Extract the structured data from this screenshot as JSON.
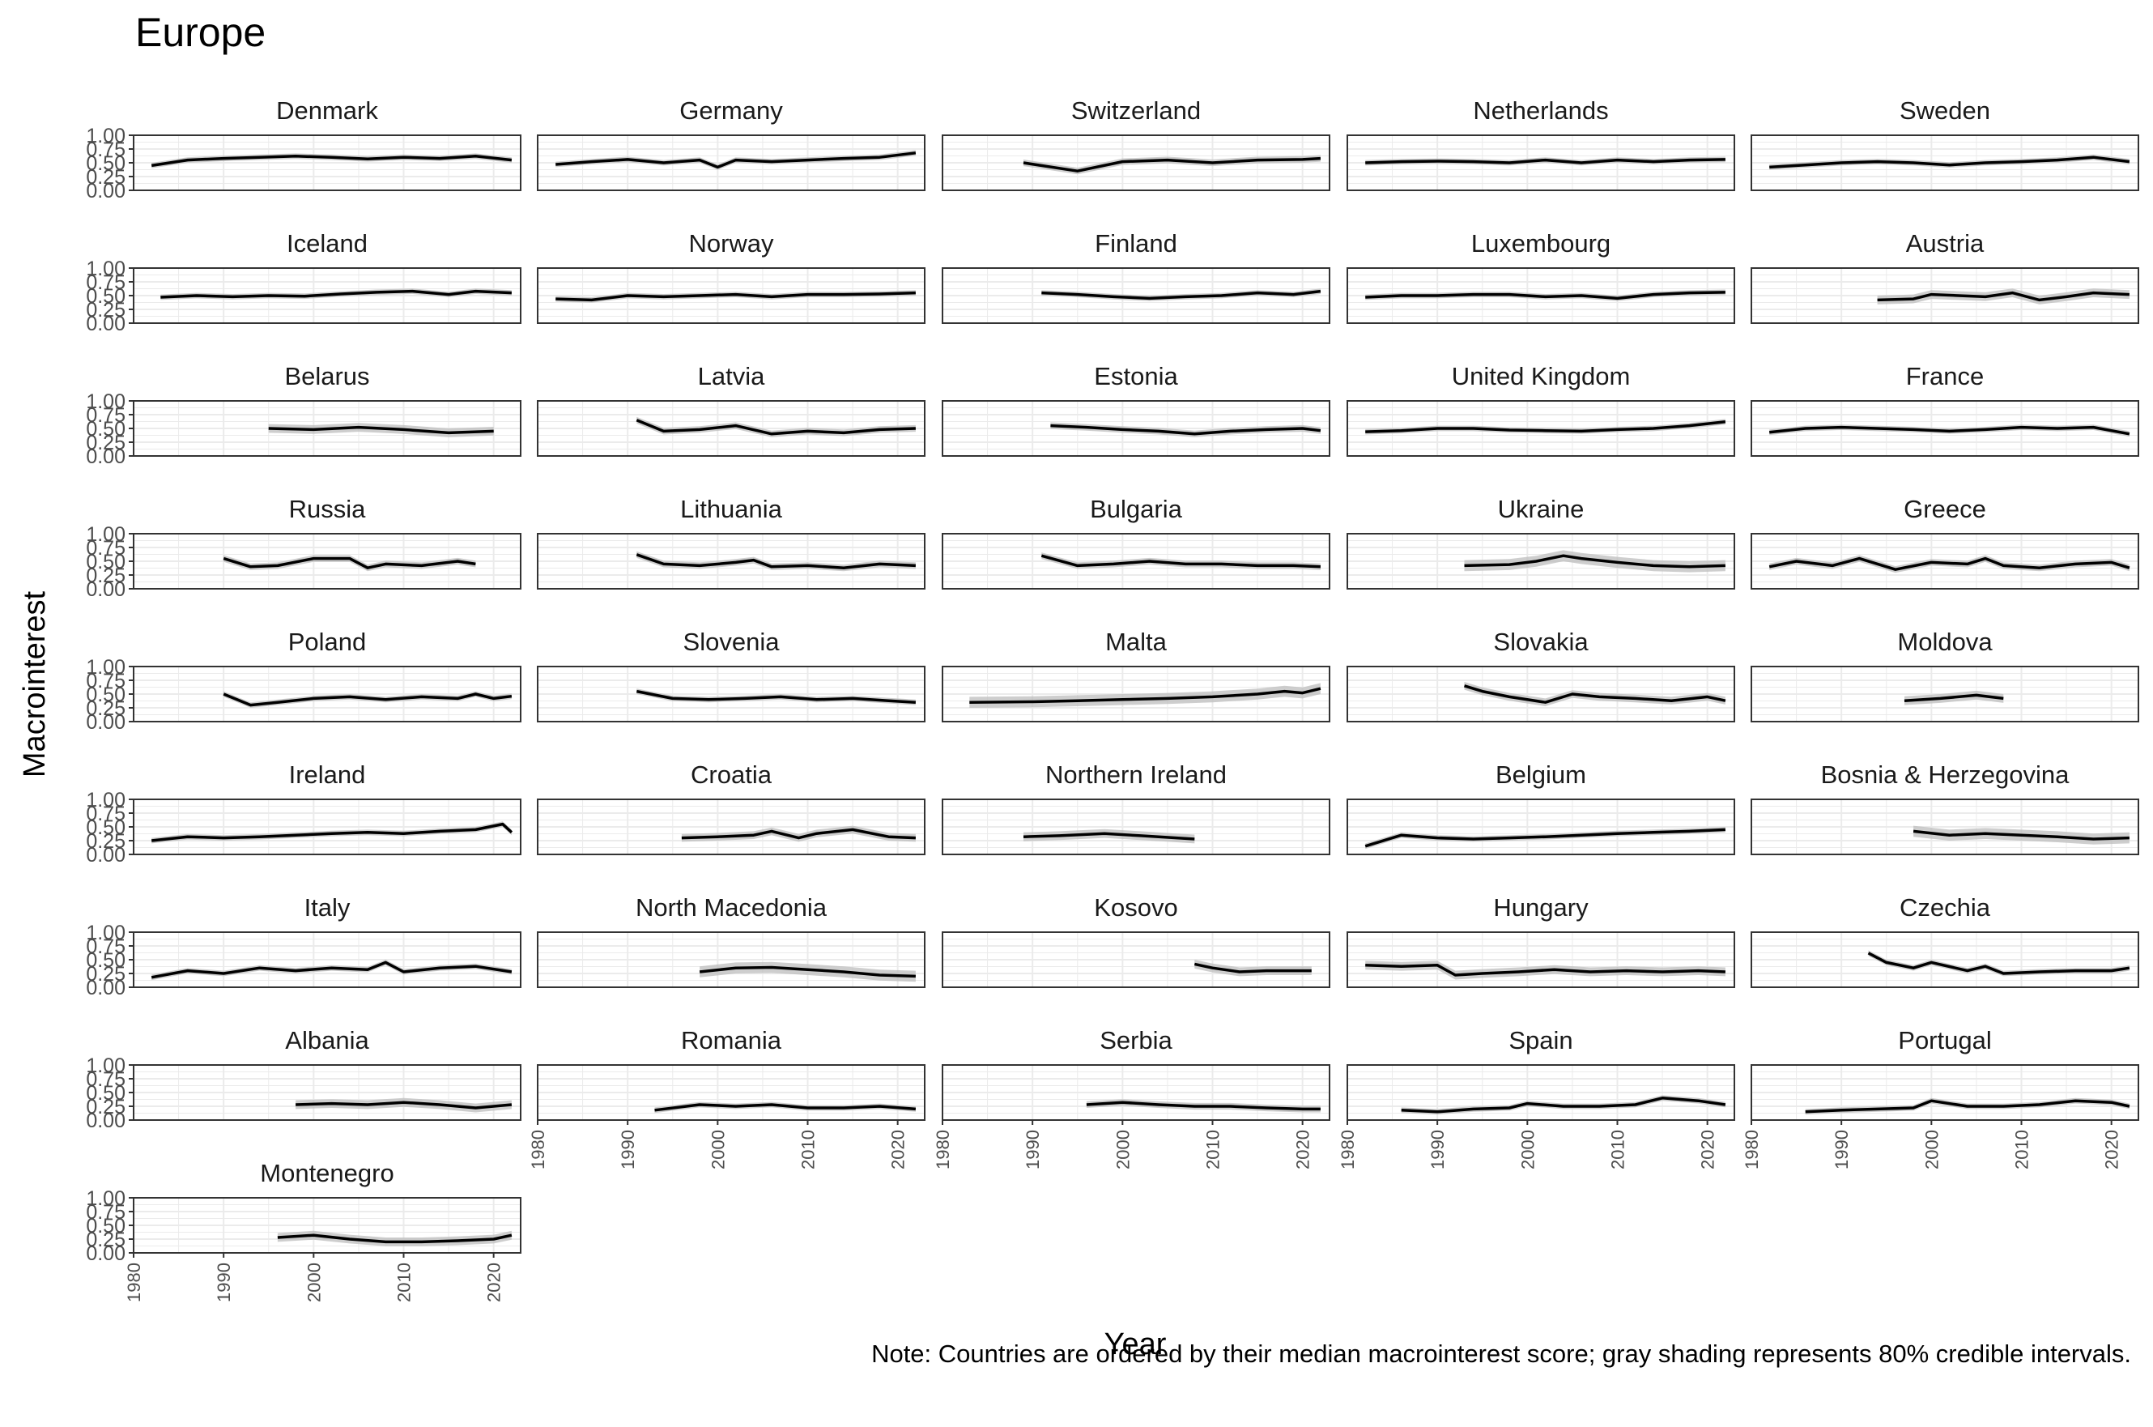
{
  "chart_data": {
    "type": "line",
    "title": "Europe",
    "xlabel": "Year",
    "ylabel": "Macrointerest",
    "caption": "Note: Countries are ordered by their median macrointerest score; gray shading represents 80% credible intervals.",
    "xlim": [
      1980,
      2023
    ],
    "ylim": [
      0,
      1
    ],
    "x_ticks": [
      "1980",
      "1990",
      "2000",
      "2010",
      "2020"
    ],
    "y_ticks": [
      "0.00",
      "0.25",
      "0.50",
      "0.75",
      "1.00"
    ],
    "facet_layout": {
      "columns": 5,
      "rows": 9
    },
    "grid": true,
    "colors": {
      "line": "#000000",
      "ribbon": "#bdbdbd",
      "grid": "#ebebeb",
      "panel_border": "#333333",
      "text": "#000000",
      "tick_text": "#4d4d4d"
    },
    "series": [
      {
        "name": "Denmark",
        "x": [
          1982,
          1986,
          1990,
          1994,
          1998,
          2002,
          2006,
          2010,
          2014,
          2018,
          2022
        ],
        "y": [
          0.45,
          0.55,
          0.58,
          0.6,
          0.62,
          0.6,
          0.57,
          0.6,
          0.58,
          0.62,
          0.55
        ],
        "ci": 0.05
      },
      {
        "name": "Germany",
        "x": [
          1982,
          1986,
          1990,
          1994,
          1998,
          2000,
          2002,
          2006,
          2010,
          2014,
          2018,
          2022
        ],
        "y": [
          0.47,
          0.52,
          0.56,
          0.5,
          0.55,
          0.42,
          0.55,
          0.52,
          0.55,
          0.58,
          0.6,
          0.68
        ],
        "ci": 0.05
      },
      {
        "name": "Switzerland",
        "x": [
          1989,
          1995,
          2000,
          2005,
          2010,
          2015,
          2020,
          2022
        ],
        "y": [
          0.5,
          0.35,
          0.52,
          0.55,
          0.5,
          0.55,
          0.56,
          0.58
        ],
        "ci": 0.06
      },
      {
        "name": "Netherlands",
        "x": [
          1982,
          1986,
          1990,
          1994,
          1998,
          2002,
          2006,
          2010,
          2014,
          2018,
          2022
        ],
        "y": [
          0.5,
          0.52,
          0.53,
          0.52,
          0.5,
          0.55,
          0.5,
          0.55,
          0.52,
          0.55,
          0.56
        ],
        "ci": 0.05
      },
      {
        "name": "Sweden",
        "x": [
          1982,
          1986,
          1990,
          1994,
          1998,
          2002,
          2006,
          2010,
          2014,
          2018,
          2022
        ],
        "y": [
          0.42,
          0.46,
          0.5,
          0.52,
          0.5,
          0.46,
          0.5,
          0.52,
          0.55,
          0.6,
          0.52
        ],
        "ci": 0.05
      },
      {
        "name": "Iceland",
        "x": [
          1983,
          1987,
          1991,
          1995,
          1999,
          2003,
          2007,
          2011,
          2015,
          2018,
          2022
        ],
        "y": [
          0.47,
          0.5,
          0.48,
          0.5,
          0.49,
          0.53,
          0.56,
          0.58,
          0.52,
          0.58,
          0.55
        ],
        "ci": 0.05
      },
      {
        "name": "Norway",
        "x": [
          1982,
          1986,
          1990,
          1994,
          1998,
          2002,
          2006,
          2010,
          2014,
          2018,
          2022
        ],
        "y": [
          0.44,
          0.42,
          0.5,
          0.48,
          0.5,
          0.52,
          0.48,
          0.52,
          0.52,
          0.53,
          0.55
        ],
        "ci": 0.05
      },
      {
        "name": "Finland",
        "x": [
          1991,
          1995,
          1999,
          2003,
          2007,
          2011,
          2015,
          2019,
          2022
        ],
        "y": [
          0.55,
          0.52,
          0.48,
          0.45,
          0.48,
          0.5,
          0.55,
          0.52,
          0.58
        ],
        "ci": 0.05
      },
      {
        "name": "Luxembourg",
        "x": [
          1982,
          1986,
          1990,
          1994,
          1998,
          2002,
          2006,
          2010,
          2014,
          2018,
          2022
        ],
        "y": [
          0.47,
          0.5,
          0.5,
          0.52,
          0.52,
          0.48,
          0.5,
          0.45,
          0.52,
          0.55,
          0.56
        ],
        "ci": 0.05
      },
      {
        "name": "Austria",
        "x": [
          1994,
          1998,
          2000,
          2003,
          2006,
          2009,
          2012,
          2015,
          2018,
          2022
        ],
        "y": [
          0.42,
          0.44,
          0.52,
          0.5,
          0.48,
          0.55,
          0.42,
          0.48,
          0.55,
          0.52
        ],
        "ci": 0.08
      },
      {
        "name": "Belarus",
        "x": [
          1995,
          2000,
          2005,
          2010,
          2015,
          2020
        ],
        "y": [
          0.5,
          0.48,
          0.52,
          0.48,
          0.42,
          0.45
        ],
        "ci": 0.08
      },
      {
        "name": "Latvia",
        "x": [
          1991,
          1994,
          1998,
          2002,
          2006,
          2010,
          2014,
          2018,
          2022
        ],
        "y": [
          0.65,
          0.45,
          0.48,
          0.55,
          0.4,
          0.45,
          0.42,
          0.48,
          0.5
        ],
        "ci": 0.06
      },
      {
        "name": "Estonia",
        "x": [
          1992,
          1996,
          2000,
          2004,
          2008,
          2012,
          2016,
          2020,
          2022
        ],
        "y": [
          0.55,
          0.52,
          0.48,
          0.45,
          0.4,
          0.45,
          0.48,
          0.5,
          0.46
        ],
        "ci": 0.06
      },
      {
        "name": "United Kingdom",
        "x": [
          1982,
          1986,
          1990,
          1994,
          1998,
          2002,
          2006,
          2010,
          2014,
          2018,
          2022
        ],
        "y": [
          0.44,
          0.46,
          0.5,
          0.5,
          0.47,
          0.46,
          0.45,
          0.48,
          0.5,
          0.55,
          0.62
        ],
        "ci": 0.05
      },
      {
        "name": "France",
        "x": [
          1982,
          1986,
          1990,
          1994,
          1998,
          2002,
          2006,
          2010,
          2014,
          2018,
          2022
        ],
        "y": [
          0.43,
          0.5,
          0.52,
          0.5,
          0.48,
          0.45,
          0.48,
          0.52,
          0.5,
          0.52,
          0.4
        ],
        "ci": 0.05
      },
      {
        "name": "Russia",
        "x": [
          1990,
          1993,
          1996,
          2000,
          2004,
          2006,
          2008,
          2012,
          2016,
          2018
        ],
        "y": [
          0.55,
          0.4,
          0.42,
          0.55,
          0.55,
          0.38,
          0.45,
          0.42,
          0.5,
          0.45
        ],
        "ci": 0.06
      },
      {
        "name": "Lithuania",
        "x": [
          1991,
          1994,
          1998,
          2002,
          2004,
          2006,
          2010,
          2014,
          2018,
          2022
        ],
        "y": [
          0.62,
          0.45,
          0.42,
          0.48,
          0.52,
          0.4,
          0.42,
          0.38,
          0.45,
          0.42
        ],
        "ci": 0.06
      },
      {
        "name": "Bulgaria",
        "x": [
          1991,
          1995,
          1999,
          2003,
          2007,
          2011,
          2015,
          2019,
          2022
        ],
        "y": [
          0.6,
          0.42,
          0.45,
          0.5,
          0.45,
          0.45,
          0.42,
          0.42,
          0.4
        ],
        "ci": 0.06
      },
      {
        "name": "Ukraine",
        "x": [
          1993,
          1998,
          2001,
          2004,
          2006,
          2010,
          2014,
          2018,
          2022
        ],
        "y": [
          0.42,
          0.44,
          0.5,
          0.6,
          0.55,
          0.48,
          0.42,
          0.4,
          0.42
        ],
        "ci": 0.1
      },
      {
        "name": "Greece",
        "x": [
          1982,
          1985,
          1989,
          1992,
          1996,
          2000,
          2004,
          2006,
          2008,
          2012,
          2016,
          2020,
          2022
        ],
        "y": [
          0.4,
          0.5,
          0.42,
          0.55,
          0.35,
          0.48,
          0.45,
          0.55,
          0.42,
          0.38,
          0.45,
          0.48,
          0.38
        ],
        "ci": 0.06
      },
      {
        "name": "Poland",
        "x": [
          1990,
          1993,
          1996,
          2000,
          2004,
          2008,
          2012,
          2016,
          2018,
          2020,
          2022
        ],
        "y": [
          0.5,
          0.3,
          0.35,
          0.42,
          0.45,
          0.4,
          0.45,
          0.42,
          0.5,
          0.42,
          0.46
        ],
        "ci": 0.05
      },
      {
        "name": "Slovenia",
        "x": [
          1991,
          1995,
          1999,
          2003,
          2007,
          2011,
          2015,
          2019,
          2022
        ],
        "y": [
          0.55,
          0.42,
          0.4,
          0.42,
          0.45,
          0.4,
          0.42,
          0.38,
          0.35
        ],
        "ci": 0.05
      },
      {
        "name": "Malta",
        "x": [
          1983,
          1990,
          1995,
          2000,
          2005,
          2010,
          2015,
          2018,
          2020,
          2022
        ],
        "y": [
          0.35,
          0.36,
          0.38,
          0.4,
          0.42,
          0.45,
          0.5,
          0.55,
          0.52,
          0.6
        ],
        "ci": 0.1
      },
      {
        "name": "Slovakia",
        "x": [
          1993,
          1995,
          1998,
          2002,
          2005,
          2008,
          2012,
          2016,
          2020,
          2022
        ],
        "y": [
          0.65,
          0.55,
          0.45,
          0.35,
          0.5,
          0.45,
          0.42,
          0.38,
          0.45,
          0.38
        ],
        "ci": 0.07
      },
      {
        "name": "Moldova",
        "x": [
          1997,
          2001,
          2005,
          2008
        ],
        "y": [
          0.38,
          0.42,
          0.48,
          0.42
        ],
        "ci": 0.08
      },
      {
        "name": "Ireland",
        "x": [
          1982,
          1986,
          1990,
          1994,
          1998,
          2002,
          2006,
          2010,
          2014,
          2018,
          2021,
          2022
        ],
        "y": [
          0.25,
          0.32,
          0.3,
          0.32,
          0.35,
          0.38,
          0.4,
          0.38,
          0.42,
          0.45,
          0.55,
          0.4
        ],
        "ci": 0.05
      },
      {
        "name": "Croatia",
        "x": [
          1996,
          2000,
          2004,
          2006,
          2009,
          2011,
          2015,
          2019,
          2022
        ],
        "y": [
          0.3,
          0.32,
          0.35,
          0.42,
          0.3,
          0.38,
          0.45,
          0.32,
          0.3
        ],
        "ci": 0.07
      },
      {
        "name": "Northern Ireland",
        "x": [
          1989,
          1993,
          1998,
          2002,
          2006,
          2008
        ],
        "y": [
          0.32,
          0.34,
          0.38,
          0.34,
          0.3,
          0.28
        ],
        "ci": 0.08
      },
      {
        "name": "Belgium",
        "x": [
          1982,
          1986,
          1990,
          1994,
          1998,
          2002,
          2006,
          2010,
          2014,
          2018,
          2022
        ],
        "y": [
          0.15,
          0.35,
          0.3,
          0.28,
          0.3,
          0.32,
          0.35,
          0.38,
          0.4,
          0.42,
          0.45
        ],
        "ci": 0.05
      },
      {
        "name": "Bosnia & Herzegovina",
        "x": [
          1998,
          2002,
          2006,
          2010,
          2014,
          2018,
          2022
        ],
        "y": [
          0.42,
          0.35,
          0.38,
          0.35,
          0.32,
          0.28,
          0.3
        ],
        "ci": 0.1
      },
      {
        "name": "Italy",
        "x": [
          1982,
          1986,
          1990,
          1994,
          1998,
          2002,
          2006,
          2008,
          2010,
          2014,
          2018,
          2022
        ],
        "y": [
          0.18,
          0.3,
          0.25,
          0.35,
          0.3,
          0.35,
          0.32,
          0.45,
          0.28,
          0.35,
          0.38,
          0.28
        ],
        "ci": 0.05
      },
      {
        "name": "North Macedonia",
        "x": [
          1998,
          2002,
          2006,
          2010,
          2014,
          2018,
          2022
        ],
        "y": [
          0.28,
          0.35,
          0.36,
          0.32,
          0.28,
          0.22,
          0.2
        ],
        "ci": 0.1
      },
      {
        "name": "Kosovo",
        "x": [
          2008,
          2010,
          2013,
          2016,
          2019,
          2021
        ],
        "y": [
          0.42,
          0.35,
          0.28,
          0.3,
          0.3,
          0.3
        ],
        "ci": 0.08
      },
      {
        "name": "Hungary",
        "x": [
          1982,
          1986,
          1990,
          1992,
          1995,
          1999,
          2003,
          2007,
          2011,
          2015,
          2019,
          2022
        ],
        "y": [
          0.4,
          0.38,
          0.4,
          0.22,
          0.25,
          0.28,
          0.32,
          0.28,
          0.3,
          0.28,
          0.3,
          0.28
        ],
        "ci": 0.08
      },
      {
        "name": "Czechia",
        "x": [
          1993,
          1995,
          1998,
          2000,
          2004,
          2006,
          2008,
          2012,
          2016,
          2020,
          2022
        ],
        "y": [
          0.62,
          0.45,
          0.35,
          0.45,
          0.3,
          0.38,
          0.25,
          0.28,
          0.3,
          0.3,
          0.35
        ],
        "ci": 0.05
      },
      {
        "name": "Albania",
        "x": [
          1998,
          2002,
          2006,
          2010,
          2014,
          2018,
          2022
        ],
        "y": [
          0.28,
          0.3,
          0.28,
          0.32,
          0.28,
          0.22,
          0.28
        ],
        "ci": 0.08
      },
      {
        "name": "Romania",
        "x": [
          1993,
          1998,
          2002,
          2006,
          2010,
          2014,
          2018,
          2022
        ],
        "y": [
          0.18,
          0.28,
          0.25,
          0.28,
          0.22,
          0.22,
          0.25,
          0.2
        ],
        "ci": 0.05
      },
      {
        "name": "Serbia",
        "x": [
          1996,
          2000,
          2004,
          2008,
          2012,
          2016,
          2020,
          2022
        ],
        "y": [
          0.28,
          0.32,
          0.28,
          0.25,
          0.25,
          0.22,
          0.2,
          0.2
        ],
        "ci": 0.06
      },
      {
        "name": "Spain",
        "x": [
          1986,
          1990,
          1994,
          1998,
          2000,
          2004,
          2008,
          2012,
          2015,
          2019,
          2022
        ],
        "y": [
          0.18,
          0.15,
          0.2,
          0.22,
          0.3,
          0.25,
          0.25,
          0.28,
          0.4,
          0.35,
          0.28
        ],
        "ci": 0.05
      },
      {
        "name": "Portugal",
        "x": [
          1986,
          1990,
          1994,
          1998,
          2000,
          2004,
          2008,
          2012,
          2016,
          2020,
          2022
        ],
        "y": [
          0.15,
          0.18,
          0.2,
          0.22,
          0.35,
          0.25,
          0.25,
          0.28,
          0.35,
          0.32,
          0.25
        ],
        "ci": 0.05
      },
      {
        "name": "Montenegro",
        "x": [
          1996,
          2000,
          2004,
          2008,
          2012,
          2016,
          2020,
          2022
        ],
        "y": [
          0.28,
          0.32,
          0.25,
          0.2,
          0.2,
          0.22,
          0.25,
          0.32
        ],
        "ci": 0.08
      }
    ]
  }
}
